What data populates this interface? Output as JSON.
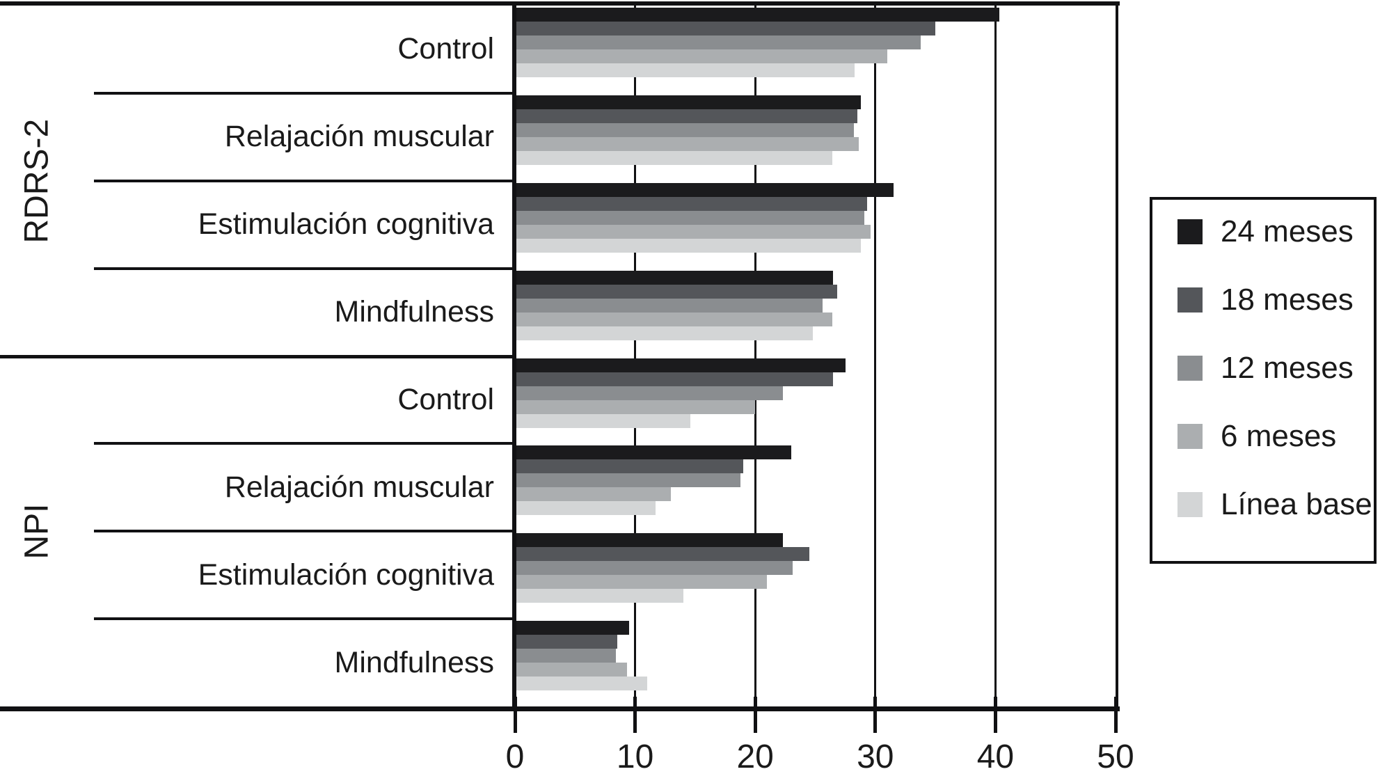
{
  "chart_data": {
    "type": "bar",
    "orientation": "horizontal",
    "title": "",
    "xlabel": "",
    "ylabel": "",
    "grid": true,
    "x_axis": {
      "min": 0,
      "max": 50,
      "ticks": [
        0,
        10,
        20,
        30,
        40,
        50
      ]
    },
    "scale_groups": [
      {
        "label": "RDRS-2",
        "categories": [
          "Control",
          "Relajación muscular",
          "Estimulación cognitiva",
          "Mindfulness"
        ]
      },
      {
        "label": "NPI",
        "categories": [
          "Control",
          "Relajación muscular",
          "Estimulación cognitiva",
          "Mindfulness"
        ]
      }
    ],
    "categories": [
      "RDRS-2 Control",
      "RDRS-2 Relajación muscular",
      "RDRS-2 Estimulación cognitiva",
      "RDRS-2 Mindfulness",
      "NPI Control",
      "NPI Relajación muscular",
      "NPI Estimulación cognitiva",
      "NPI Mindfulness"
    ],
    "series": [
      {
        "name": "24 meses",
        "color": "#1b1b1d",
        "values": [
          40.3,
          28.8,
          31.5,
          26.5,
          27.5,
          23.0,
          22.3,
          9.5
        ]
      },
      {
        "name": "18 meses",
        "color": "#54565a",
        "values": [
          35.0,
          28.5,
          29.3,
          26.8,
          26.5,
          19.0,
          24.5,
          8.5
        ]
      },
      {
        "name": "12 meses",
        "color": "#8a8d90",
        "values": [
          33.8,
          28.2,
          29.1,
          25.6,
          22.3,
          18.8,
          23.1,
          8.4
        ]
      },
      {
        "name": "6 meses",
        "color": "#abaeb0",
        "values": [
          31.0,
          28.6,
          29.6,
          26.4,
          20.0,
          13.0,
          21.0,
          9.3
        ]
      },
      {
        "name": "Línea base",
        "color": "#d3d5d6",
        "values": [
          28.3,
          26.4,
          28.8,
          24.8,
          14.6,
          11.7,
          14.0,
          11.0
        ]
      }
    ],
    "legend": {
      "position": "right",
      "entries": [
        "24 meses",
        "18 meses",
        "12 meses",
        "6 meses",
        "Línea base"
      ]
    }
  }
}
